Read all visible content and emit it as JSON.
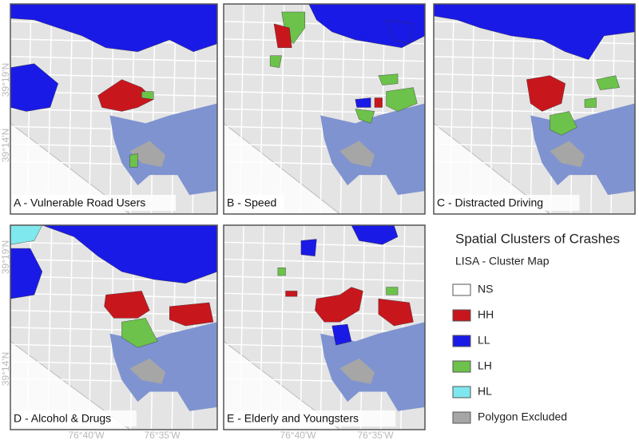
{
  "panels": [
    {
      "label": "A - Vulnerable Road Users"
    },
    {
      "label": "B - Speed"
    },
    {
      "label": "C - Distracted Driving"
    },
    {
      "label": "D - Alcohol & Drugs"
    },
    {
      "label": "E - Elderly and Youngsters"
    }
  ],
  "lat_labels": [
    "39°19'N",
    "39°14'N"
  ],
  "lon_labels": [
    "76°40'W",
    "76°35'W"
  ],
  "legend": {
    "title": "Spatial Clusters of Crashes",
    "subtitle": "LISA - Cluster Map",
    "items": [
      {
        "label": "NS",
        "color": "#ffffff"
      },
      {
        "label": "HH",
        "color": "#c8161d"
      },
      {
        "label": "LL",
        "color": "#1a1ae6"
      },
      {
        "label": "LH",
        "color": "#6cc24a"
      },
      {
        "label": "HL",
        "color": "#7fe8ee"
      },
      {
        "label": "Polygon Excluded",
        "color": "#a6a6a6"
      }
    ]
  }
}
